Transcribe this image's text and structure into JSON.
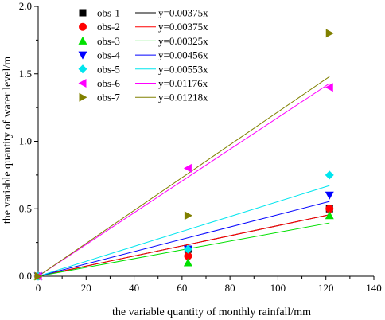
{
  "chart_data": {
    "type": "scatter",
    "xlabel": "the variable quantity of monthly rainfall/mm",
    "ylabel": "the variable quantity of water level/m",
    "xlim": [
      0,
      140
    ],
    "ylim": [
      0,
      2.0
    ],
    "x_ticks": [
      "0",
      "20",
      "40",
      "60",
      "80",
      "100",
      "120",
      "140"
    ],
    "y_ticks": [
      "0.0",
      "0.5",
      "1.0",
      "1.5",
      "2.0"
    ],
    "grid": false,
    "legend_position": "top-left",
    "series": [
      {
        "name": "obs-1",
        "marker": "square",
        "color": "#000000",
        "fit_label": "y=0.00375x",
        "slope": 0.00375,
        "points": [
          {
            "x": 0,
            "y": 0
          },
          {
            "x": 62.5,
            "y": 0.2
          },
          {
            "x": 121.5,
            "y": 0.5
          }
        ]
      },
      {
        "name": "obs-2",
        "marker": "circle",
        "color": "#ff0000",
        "fit_label": "y=0.00375x",
        "slope": 0.00375,
        "points": [
          {
            "x": 0,
            "y": 0
          },
          {
            "x": 62.5,
            "y": 0.15
          },
          {
            "x": 121.5,
            "y": 0.5
          }
        ]
      },
      {
        "name": "obs-3",
        "marker": "triangle-up",
        "color": "#00e000",
        "fit_label": "y=0.00325x",
        "slope": 0.00325,
        "points": [
          {
            "x": 0,
            "y": 0
          },
          {
            "x": 62.5,
            "y": 0.1
          },
          {
            "x": 121.5,
            "y": 0.45
          }
        ]
      },
      {
        "name": "obs-4",
        "marker": "triangle-down",
        "color": "#0000ff",
        "fit_label": "y=0.00456x",
        "slope": 0.00456,
        "points": [
          {
            "x": 0,
            "y": 0
          },
          {
            "x": 62.5,
            "y": 0.2
          },
          {
            "x": 121.5,
            "y": 0.6
          }
        ]
      },
      {
        "name": "obs-5",
        "marker": "diamond",
        "color": "#00e5ee",
        "fit_label": "y=0.00553x",
        "slope": 0.00553,
        "points": [
          {
            "x": 0,
            "y": 0
          },
          {
            "x": 62.5,
            "y": 0.2
          },
          {
            "x": 121.5,
            "y": 0.75
          }
        ]
      },
      {
        "name": "obs-6",
        "marker": "triangle-left",
        "color": "#ff00ff",
        "fit_label": "y=0.01176x",
        "slope": 0.01176,
        "points": [
          {
            "x": 0,
            "y": 0
          },
          {
            "x": 62.5,
            "y": 0.8
          },
          {
            "x": 121.5,
            "y": 1.4
          }
        ]
      },
      {
        "name": "obs-7",
        "marker": "triangle-right",
        "color": "#808000",
        "fit_label": "y=0.01218x",
        "slope": 0.01218,
        "points": [
          {
            "x": 0,
            "y": 0
          },
          {
            "x": 62.5,
            "y": 0.45
          },
          {
            "x": 121.5,
            "y": 1.8
          }
        ]
      }
    ],
    "fit_x_end": 121.5
  }
}
